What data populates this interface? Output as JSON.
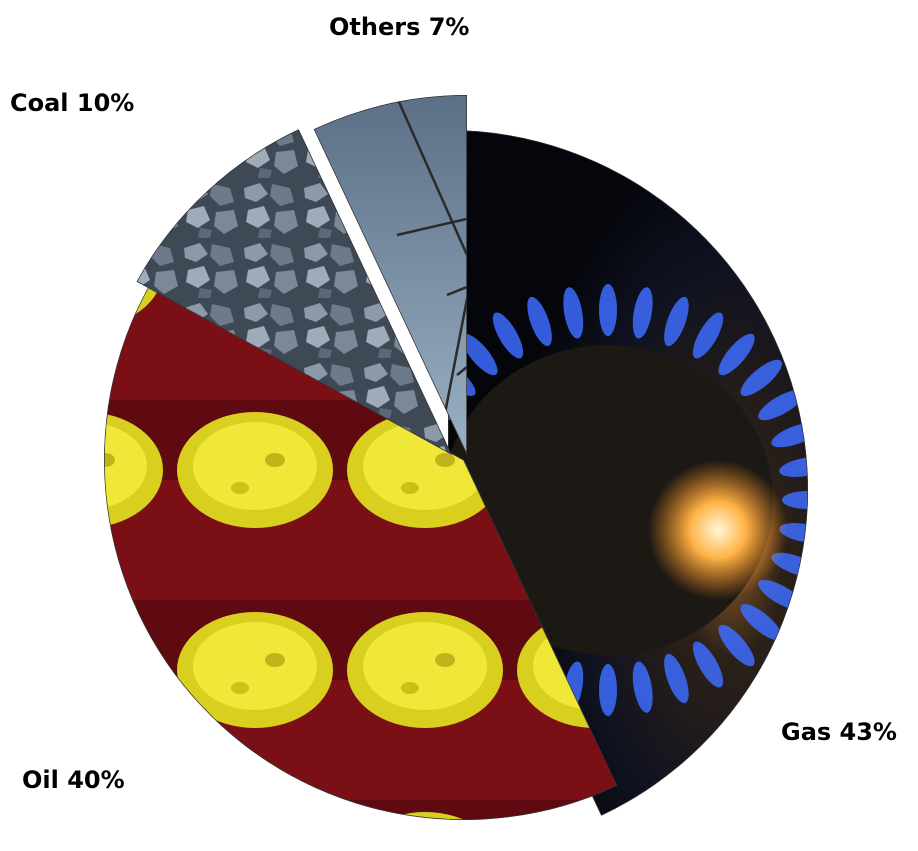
{
  "chart_data": {
    "type": "pie",
    "title": "",
    "slices": [
      {
        "name": "Gas",
        "value": 43,
        "label": "Gas 43%",
        "texture": "gas-flame"
      },
      {
        "name": "Oil",
        "value": 40,
        "label": "Oil 40%",
        "texture": "oil-barrels"
      },
      {
        "name": "Coal",
        "value": 10,
        "label": "Coal 10%",
        "texture": "coal-rocks"
      },
      {
        "name": "Others",
        "value": 7,
        "label": "Others 7%",
        "texture": "power-pylon"
      }
    ],
    "exploded": true,
    "legend": "none"
  }
}
